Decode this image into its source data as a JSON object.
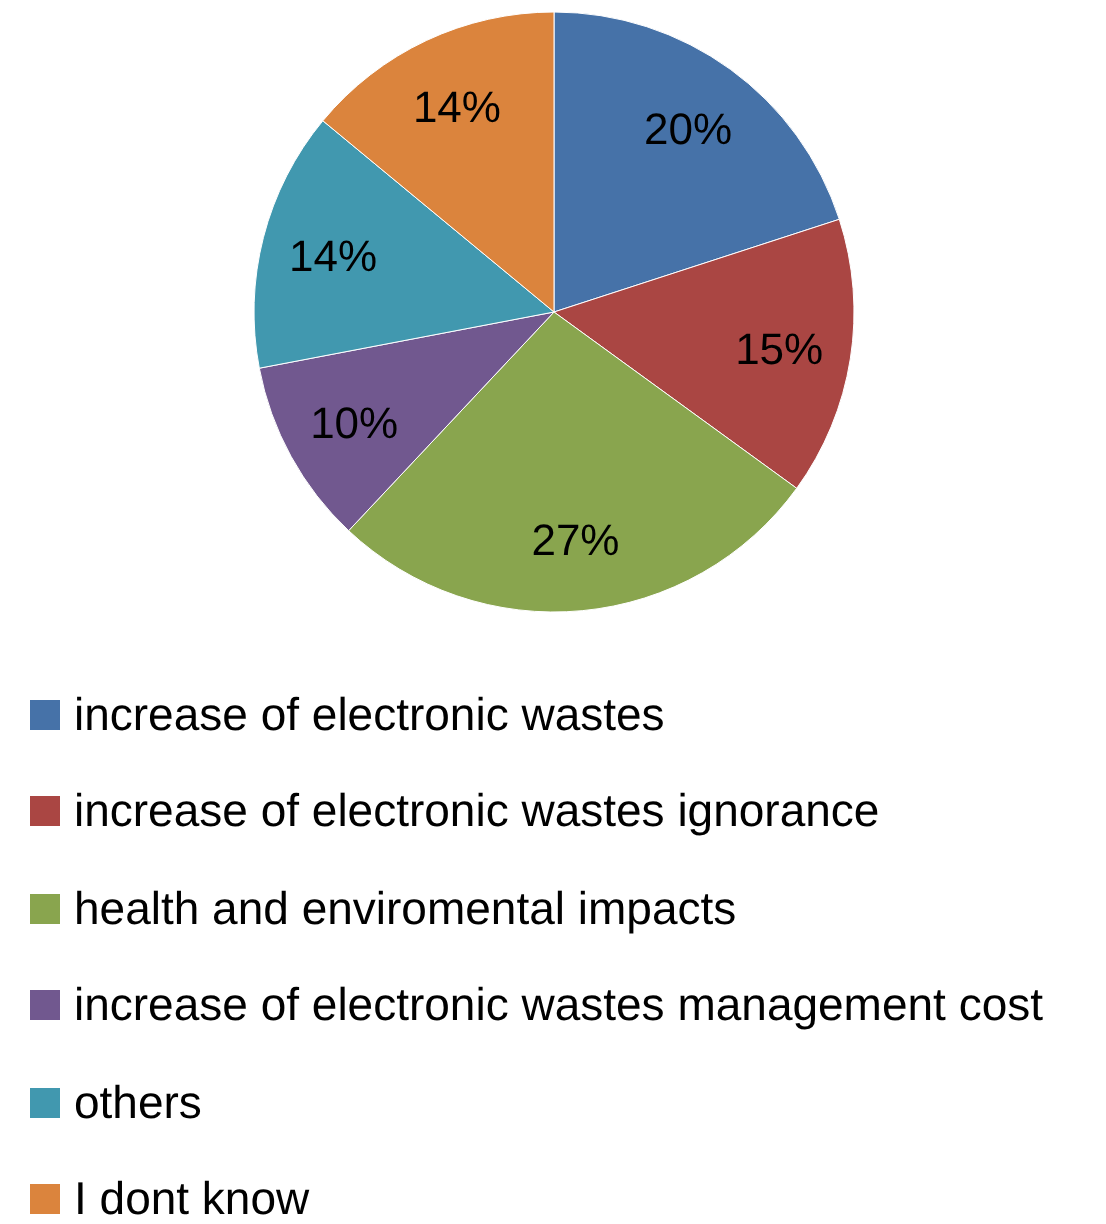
{
  "chart_data": {
    "type": "pie",
    "categories": [
      "increase of electronic wastes",
      "increase of electronic wastes ignorance",
      "health and enviromental impacts",
      "increase of electronic wastes management cost",
      "others",
      "I dont know"
    ],
    "values": [
      20,
      15,
      27,
      10,
      14,
      14
    ],
    "colors": [
      "#4672a8",
      "#aa4643",
      "#89a54e",
      "#71588f",
      "#4198af",
      "#db843d"
    ],
    "value_labels": [
      "20%",
      "15%",
      "27%",
      "10%",
      "14%",
      "14%"
    ],
    "legend": "bottom"
  }
}
